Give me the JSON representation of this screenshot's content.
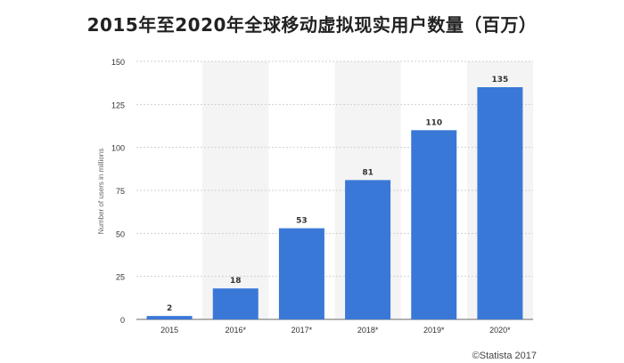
{
  "title": "2015年至2020年全球移动虚拟现实用户数量（百万）",
  "credit": "©Statista 2017",
  "colors": {
    "bar": "#3a78d8",
    "band": "#f4f4f4",
    "grid": "#cfcfcf",
    "axis": "#666666",
    "text": "#333333"
  },
  "chart_data": {
    "type": "bar",
    "categories": [
      "2015",
      "2016*",
      "2017*",
      "2018*",
      "2019*",
      "2020*"
    ],
    "values": [
      2,
      18,
      53,
      81,
      110,
      135
    ],
    "data_labels": [
      "2",
      "18",
      "53",
      "81",
      "110",
      "135"
    ],
    "title": "2015年至2020年全球移动虚拟现实用户数量（百万）",
    "xlabel": "",
    "ylabel": "Number of users in millions",
    "ylim": [
      0,
      150
    ],
    "yticks": [
      0,
      25,
      50,
      75,
      100,
      125,
      150
    ],
    "grid": true,
    "legend": "none",
    "source": "©Statista 2017"
  }
}
